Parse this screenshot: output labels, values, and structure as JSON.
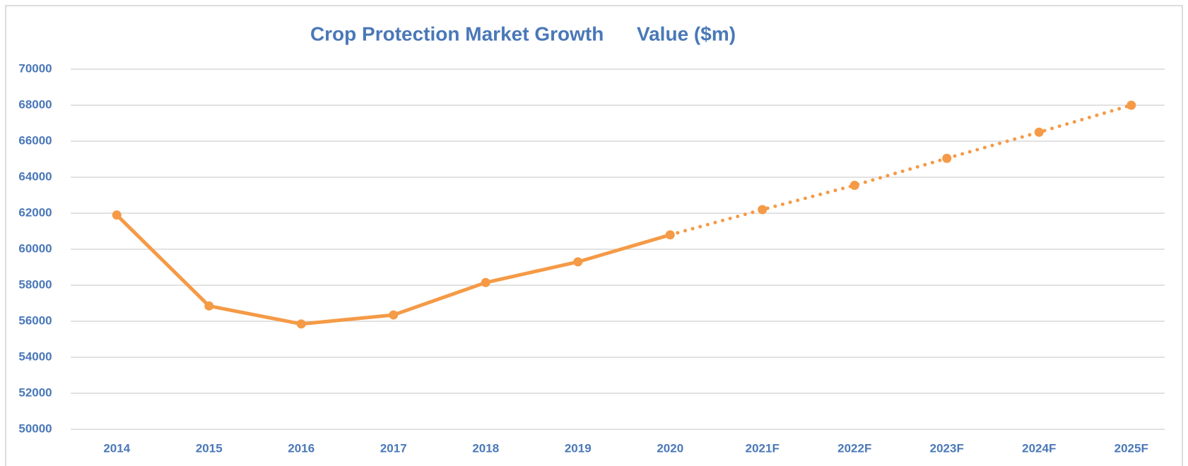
{
  "chart_data": {
    "type": "line",
    "title": "Crop Protection Market Growth      Value ($m)",
    "categories": [
      "2014",
      "2015",
      "2016",
      "2017",
      "2018",
      "2019",
      "2020",
      "2021F",
      "2022F",
      "2023F",
      "2024F",
      "2025F"
    ],
    "series": [
      {
        "color": "#f59a46",
        "style": "solid",
        "values": [
          61900,
          56850,
          55850,
          56350,
          58150,
          59300,
          60800,
          null,
          null,
          null,
          null,
          null
        ]
      },
      {
        "color": "#f59a46",
        "style": "dotted",
        "values": [
          null,
          null,
          null,
          null,
          null,
          null,
          60800,
          62200,
          63550,
          65050,
          66500,
          68000
        ]
      }
    ],
    "ylim": [
      50000,
      70000
    ],
    "yticks": [
      50000,
      52000,
      54000,
      56000,
      58000,
      60000,
      62000,
      64000,
      66000,
      68000,
      70000
    ],
    "grid": true
  }
}
